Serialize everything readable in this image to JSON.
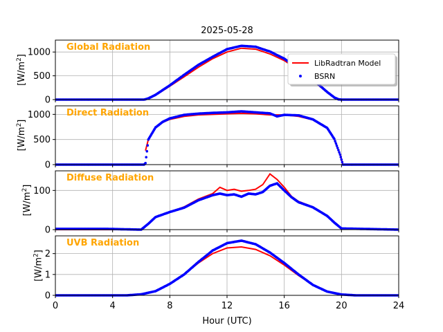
{
  "colors": {
    "model": "#ff0000",
    "bsrn": "#0000ff",
    "label": "#ffa500",
    "grid": "#b0b0b0"
  },
  "chart_data": {
    "type": "line",
    "title": "2025-05-28",
    "xlabel": "Hour (UTC)",
    "xlim": [
      0,
      24
    ],
    "xticks": [
      0,
      4,
      8,
      12,
      16,
      20,
      24
    ],
    "xtick_labels": [
      "0",
      "4",
      "8",
      "12",
      "16",
      "20",
      "24"
    ],
    "legend": {
      "placement": "upper-right of top panel",
      "entries": [
        {
          "name": "LibRadtran Model",
          "style": "solid line",
          "color": "#ff0000"
        },
        {
          "name": "BSRN",
          "style": "dots",
          "color": "#0000ff"
        }
      ]
    },
    "panels": [
      {
        "label": "Global Radiation",
        "ylabel_main": "[W/m",
        "ylabel_sup": "2",
        "ylabel_end": "]",
        "ylim": [
          0,
          1250
        ],
        "yticks": [
          0,
          500,
          1000
        ],
        "ytick_labels": [
          "0",
          "500",
          "1000"
        ],
        "series": [
          {
            "name": "LibRadtran Model",
            "x": [
              0,
              6.2,
              6.5,
              7,
              8,
              9,
              10,
              11,
              12,
              13,
              14,
              15,
              16,
              17,
              18,
              19,
              19.5,
              19.8,
              20,
              24
            ],
            "y": [
              0,
              0,
              20,
              90,
              280,
              480,
              680,
              860,
              1000,
              1080,
              1060,
              960,
              820,
              620,
              400,
              150,
              40,
              5,
              0,
              0
            ]
          },
          {
            "name": "BSRN",
            "x": [
              0,
              6.2,
              6.5,
              7,
              8,
              9,
              10,
              11,
              12,
              13,
              14,
              15,
              16,
              17,
              18,
              19,
              19.5,
              19.8,
              20,
              24
            ],
            "y": [
              0,
              0,
              25,
              100,
              300,
              520,
              730,
              900,
              1060,
              1130,
              1110,
              1010,
              860,
              650,
              420,
              160,
              45,
              5,
              0,
              0
            ]
          }
        ]
      },
      {
        "label": "Direct Radiation",
        "ylabel_main": "[W/m",
        "ylabel_sup": "2",
        "ylabel_end": "]",
        "ylim": [
          0,
          1170
        ],
        "yticks": [
          0,
          500,
          1000
        ],
        "ytick_labels": [
          "0",
          "500",
          "1000"
        ],
        "series": [
          {
            "name": "LibRadtran Model",
            "x": [
              6.3,
              6.5,
              7,
              7.5,
              8,
              9,
              10,
              12,
              13,
              14,
              15,
              16,
              17,
              18,
              19,
              19.5,
              19.9,
              20.1
            ],
            "y": [
              280,
              500,
              730,
              840,
              900,
              960,
              990,
              1010,
              1020,
              1010,
              990,
              990,
              960,
              890,
              720,
              500,
              200,
              0
            ]
          },
          {
            "name": "BSRN",
            "x": [
              0,
              6.2,
              6.3,
              6.5,
              7,
              7.5,
              8,
              9,
              10,
              11,
              12,
              13,
              14,
              15,
              15.5,
              16,
              17,
              18,
              19,
              19.5,
              19.9,
              20.1,
              24
            ],
            "y": [
              0,
              0,
              30,
              500,
              740,
              850,
              920,
              990,
              1015,
              1030,
              1040,
              1060,
              1040,
              1020,
              960,
              990,
              980,
              900,
              730,
              510,
              200,
              0,
              0
            ]
          }
        ]
      },
      {
        "label": "Diffuse Radiation",
        "ylabel_main": "[W/m",
        "ylabel_sup": "2",
        "ylabel_end": "]",
        "ylim": [
          0,
          150
        ],
        "yticks": [
          0,
          100
        ],
        "ytick_labels": [
          "0",
          "100"
        ],
        "series": [
          {
            "name": "LibRadtran Model",
            "x": [
              0,
              6,
              6.5,
              7,
              8,
              9,
              10,
              11,
              11.5,
              12,
              12.5,
              13,
              13.5,
              14,
              14.5,
              15,
              15.5,
              16,
              16.5,
              17,
              18,
              19,
              19.5,
              20,
              24
            ],
            "y": [
              0,
              0,
              15,
              32,
              45,
              58,
              78,
              92,
              108,
              100,
              103,
              98,
              100,
              103,
              115,
              142,
              128,
              108,
              85,
              72,
              58,
              35,
              18,
              3,
              0
            ]
          },
          {
            "name": "BSRN",
            "x": [
              0,
              3.5,
              6,
              6.5,
              7,
              8,
              9,
              10,
              11,
              11.5,
              12,
              12.5,
              13,
              13.5,
              14,
              14.5,
              15,
              15.5,
              16,
              16.5,
              17,
              18,
              19,
              19.5,
              20,
              24
            ],
            "y": [
              2,
              2,
              0,
              15,
              32,
              45,
              56,
              75,
              88,
              92,
              88,
              90,
              84,
              92,
              90,
              96,
              112,
              118,
              100,
              83,
              70,
              57,
              35,
              18,
              3,
              0
            ]
          }
        ]
      },
      {
        "label": "UVB Radiation",
        "ylabel_main": "[W/m",
        "ylabel_sup": "2",
        "ylabel_end": "]",
        "ylim": [
          0,
          2.85
        ],
        "yticks": [
          0,
          1,
          2
        ],
        "ytick_labels": [
          "0",
          "1",
          "2"
        ],
        "series": [
          {
            "name": "LibRadtran Model",
            "x": [
              0,
              5,
              6,
              7,
              8,
              9,
              10,
              11,
              12,
              13,
              14,
              15,
              16,
              17,
              18,
              19,
              20,
              21,
              24
            ],
            "y": [
              0,
              0,
              0.05,
              0.2,
              0.55,
              1.0,
              1.55,
              2.0,
              2.27,
              2.32,
              2.2,
              1.9,
              1.45,
              0.95,
              0.5,
              0.18,
              0.04,
              0,
              0
            ]
          },
          {
            "name": "BSRN",
            "x": [
              0,
              5,
              6,
              7,
              8,
              9,
              10,
              11,
              12,
              13,
              14,
              15,
              16,
              17,
              18,
              19,
              20,
              21,
              24
            ],
            "y": [
              0,
              0,
              0.05,
              0.2,
              0.55,
              1.0,
              1.6,
              2.15,
              2.5,
              2.62,
              2.45,
              2.05,
              1.55,
              1.0,
              0.5,
              0.18,
              0.04,
              0,
              0
            ]
          }
        ]
      }
    ]
  }
}
